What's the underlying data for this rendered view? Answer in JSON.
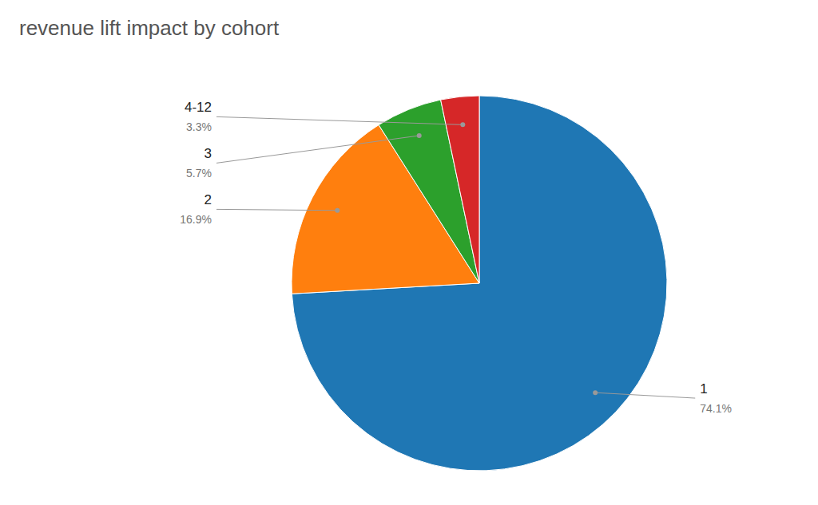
{
  "chart_data": {
    "type": "pie",
    "title": "revenue lift impact by cohort",
    "categories": [
      "1",
      "2",
      "3",
      "4-12"
    ],
    "values": [
      74.1,
      16.9,
      5.7,
      3.3
    ],
    "value_labels": [
      "74.1%",
      "16.9%",
      "5.7%",
      "3.3%"
    ],
    "data_labels": true
  }
}
